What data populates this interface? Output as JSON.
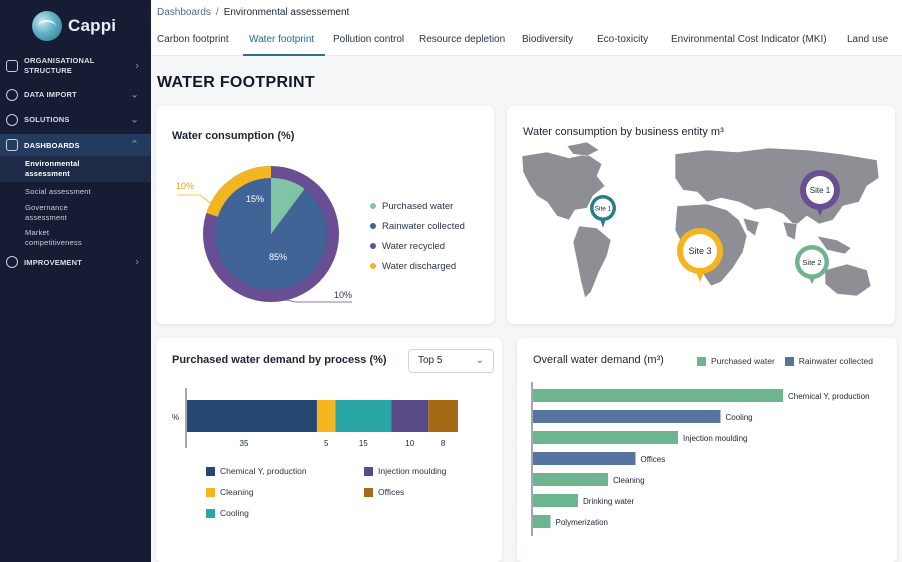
{
  "app": {
    "name": "Cappi"
  },
  "sidebar": {
    "items": [
      {
        "label": "ORGANISATIONAL STRUCTURE"
      },
      {
        "label": "DATA IMPORT"
      },
      {
        "label": "SOLUTIONS"
      },
      {
        "label": "DASHBOARDS"
      },
      {
        "label": "Environmental assessment"
      },
      {
        "label": "Social assessment"
      },
      {
        "label": "Governance assessment"
      },
      {
        "label": "Market competitiveness"
      },
      {
        "label": "IMPROVEMENT"
      }
    ]
  },
  "breadcrumb": {
    "root": "Dashboards",
    "separator": "/",
    "current": "Environmental assessement"
  },
  "tabs": [
    {
      "label": "Carbon footprint"
    },
    {
      "label": "Water footprint"
    },
    {
      "label": "Pollution control"
    },
    {
      "label": "Resource depletion"
    },
    {
      "label": "Biodiversity"
    },
    {
      "label": "Eco-toxicity"
    },
    {
      "label": "Environmental Cost Indicator (MKI)"
    },
    {
      "label": "Land use"
    }
  ],
  "page_title": "WATER FOOTPRINT",
  "colors": {
    "sidebar_bg": "#151c33",
    "accent": "#2e6f8e",
    "teal": "#2aa6a6",
    "navy": "#244873",
    "purple": "#5a4a87",
    "amber": "#f3b520",
    "green": "#6db58f",
    "brown": "#a56b14",
    "slate_blue": "#5574a0"
  },
  "consumption": {
    "title": "Water consumption (%)",
    "legend": [
      {
        "label": "Purchased water",
        "color": "#7fc5a5"
      },
      {
        "label": "Rainwater collected",
        "color": "#3f6495"
      },
      {
        "label": "Water recycled",
        "color": "#6a4e93"
      },
      {
        "label": "Water discharged",
        "color": "#f3b520"
      }
    ],
    "labels": {
      "outer_left": "10%",
      "outer_bottom": "10%",
      "inner_top": "15%",
      "inner_main": "85%"
    }
  },
  "map": {
    "title": "Water consumption by business entity m³",
    "sites": [
      {
        "label": "Site 1",
        "color": "#2a7d8f"
      },
      {
        "label": "Site 3",
        "color": "#f3b520"
      },
      {
        "label": "Site 1",
        "color": "#6a4e93"
      },
      {
        "label": "Site 2",
        "color": "#6db58f"
      }
    ]
  },
  "process_chart": {
    "title": "Purchased water demand by process (%)",
    "dropdown": {
      "value": "Top 5"
    },
    "y_label": "%",
    "segments": [
      {
        "name": "Chemical Y, production",
        "value": 35,
        "color": "#244873"
      },
      {
        "name": "Cleaning",
        "value": 5,
        "color": "#f3b520"
      },
      {
        "name": "Cooling",
        "value": 15,
        "color": "#2aa6a6"
      },
      {
        "name": "Injection moulding",
        "value": 10,
        "color": "#5a4a87"
      },
      {
        "name": "Offices",
        "value": 8,
        "color": "#a56b14"
      }
    ]
  },
  "chart_data": {
    "type": "bar",
    "title": "Overall water demand (m³)",
    "orientation": "horizontal",
    "categories": [
      "Chemical Y, production",
      "Cooling",
      "Injection moulding",
      "Offices",
      "Cleaning",
      "Drinking water",
      "Polymerization"
    ],
    "series": [
      {
        "name": "Purchased water",
        "color": "#6db58f"
      },
      {
        "name": "Rainwater collected",
        "color": "#5574a0"
      }
    ],
    "bar_series": [
      "Purchased water",
      "Rainwater collected",
      "Purchased water",
      "Rainwater collected",
      "Purchased water",
      "Purchased water",
      "Purchased water"
    ],
    "values": [
      100,
      75,
      58,
      41,
      30,
      18,
      7
    ],
    "xlim": [
      0,
      100
    ]
  }
}
